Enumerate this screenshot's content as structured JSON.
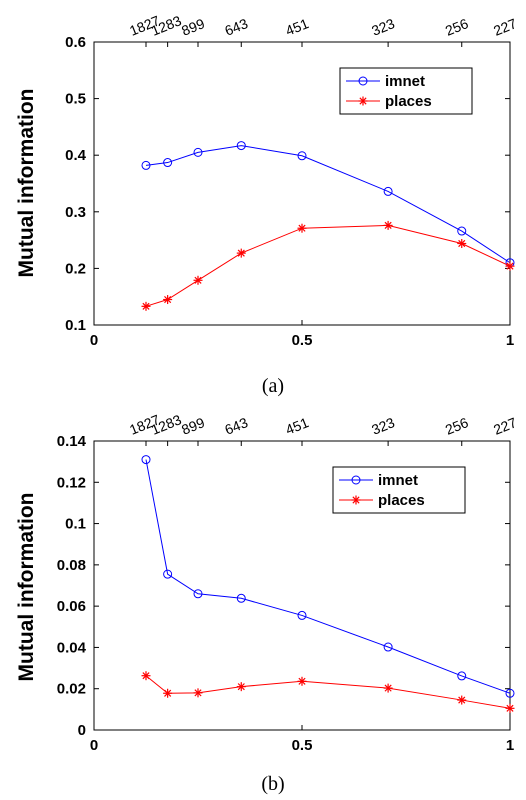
{
  "chart_data": [
    {
      "type": "line",
      "caption": "(a)",
      "ylabel": "Mutual information",
      "xlim": [
        0,
        1
      ],
      "ylim": [
        0.1,
        0.6
      ],
      "xticks": [
        0,
        0.5,
        1
      ],
      "xtick_labels": [
        "0",
        "0.5",
        "1"
      ],
      "yticks": [
        0.1,
        0.2,
        0.3,
        0.4,
        0.5,
        0.6
      ],
      "ytick_labels": [
        "0.1",
        "0.2",
        "0.3",
        "0.4",
        "0.5",
        "0.6"
      ],
      "x": [
        0.125,
        0.177,
        0.25,
        0.354,
        0.5,
        0.707,
        0.884,
        1.0
      ],
      "top_axis_labels": [
        "1827",
        "1283",
        "899",
        "643",
        "451",
        "323",
        "256",
        "227"
      ],
      "legend_position": "top-right",
      "series": [
        {
          "name": "imnet",
          "color": "#0000ff",
          "marker": "circle",
          "values": [
            0.382,
            0.387,
            0.405,
            0.417,
            0.399,
            0.336,
            0.266,
            0.21
          ]
        },
        {
          "name": "places",
          "color": "#ff0000",
          "marker": "asterisk",
          "values": [
            0.133,
            0.145,
            0.179,
            0.227,
            0.271,
            0.276,
            0.244,
            0.204
          ]
        }
      ]
    },
    {
      "type": "line",
      "caption": "(b)",
      "ylabel": "Mutual information",
      "xlim": [
        0,
        1
      ],
      "ylim": [
        0,
        0.14
      ],
      "xticks": [
        0,
        0.5,
        1
      ],
      "xtick_labels": [
        "0",
        "0.5",
        "1"
      ],
      "yticks": [
        0,
        0.02,
        0.04,
        0.06,
        0.08,
        0.1,
        0.12,
        0.14
      ],
      "ytick_labels": [
        "0",
        "0.02",
        "0.04",
        "0.06",
        "0.08",
        "0.1",
        "0.12",
        "0.14"
      ],
      "x": [
        0.125,
        0.177,
        0.25,
        0.354,
        0.5,
        0.707,
        0.884,
        1.0
      ],
      "top_axis_labels": [
        "1827",
        "1283",
        "899",
        "643",
        "451",
        "323",
        "256",
        "227"
      ],
      "legend_position": "top-right",
      "series": [
        {
          "name": "imnet",
          "color": "#0000ff",
          "marker": "circle",
          "values": [
            0.131,
            0.0755,
            0.066,
            0.0638,
            0.0555,
            0.0402,
            0.0262,
            0.0178
          ]
        },
        {
          "name": "places",
          "color": "#ff0000",
          "marker": "asterisk",
          "values": [
            0.0263,
            0.0178,
            0.018,
            0.021,
            0.0236,
            0.0203,
            0.0145,
            0.0105
          ]
        }
      ]
    }
  ]
}
